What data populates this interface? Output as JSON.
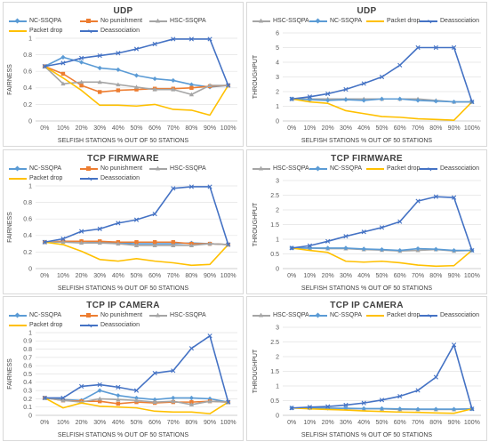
{
  "x_axis_label": "SELFISH STATIONS % OUT OF 50 STATIONS",
  "colors": {
    "nc_ssqpa": "#5b9bd5",
    "no_punishment": "#ed7d31",
    "hsc_ssqpa": "#a5a5a5",
    "packet_drop": "#ffc000",
    "deassociation": "#4472c4"
  },
  "chart_data": [
    {
      "id": "udp-fairness",
      "type": "line",
      "title": "UDP",
      "ylabel": "FAIRNESS",
      "ylim": [
        0,
        1
      ],
      "yticks": [
        0,
        0.2,
        0.4,
        0.6,
        0.8,
        1
      ],
      "categories": [
        "0%",
        "10%",
        "20%",
        "30%",
        "40%",
        "50%",
        "60%",
        "70%",
        "80%",
        "90%",
        "100%"
      ],
      "legend": [
        "NC-SSQPA",
        "No punishment",
        "HSC-SSQPA",
        "Packet drop",
        "Deassociation"
      ],
      "series": [
        {
          "name": "NC-SSQPA",
          "values": [
            0.66,
            0.77,
            0.71,
            0.64,
            0.62,
            0.55,
            0.51,
            0.49,
            0.44,
            0.41,
            0.43
          ]
        },
        {
          "name": "No punishment",
          "values": [
            0.66,
            0.57,
            0.43,
            0.35,
            0.37,
            0.38,
            0.39,
            0.39,
            0.4,
            0.42,
            0.43
          ]
        },
        {
          "name": "HSC-SSQPA",
          "values": [
            0.66,
            0.45,
            0.47,
            0.47,
            0.44,
            0.41,
            0.38,
            0.38,
            0.32,
            0.43,
            0.43
          ]
        },
        {
          "name": "Packet drop",
          "values": [
            0.66,
            0.52,
            0.37,
            0.19,
            0.19,
            0.18,
            0.2,
            0.14,
            0.13,
            0.07,
            0.43
          ]
        },
        {
          "name": "Deassociation",
          "values": [
            0.66,
            0.7,
            0.76,
            0.79,
            0.82,
            0.87,
            0.93,
            0.99,
            0.99,
            0.99,
            0.43
          ]
        }
      ]
    },
    {
      "id": "udp-throughput",
      "type": "line",
      "title": "UDP",
      "ylabel": "THROUGHPUT",
      "ylim": [
        0,
        6
      ],
      "yticks": [
        0,
        1,
        2,
        3,
        4,
        5,
        6
      ],
      "categories": [
        "0%",
        "10%",
        "20%",
        "30%",
        "40%",
        "50%",
        "60%",
        "70%",
        "80%",
        "90%",
        "100%"
      ],
      "legend": [
        "HSC-SSQPA",
        "NC-SSQPA",
        "Packet drop",
        "Deassociation"
      ],
      "series": [
        {
          "name": "HSC-SSQPA",
          "values": [
            1.5,
            1.5,
            1.5,
            1.5,
            1.5,
            1.5,
            1.5,
            1.5,
            1.4,
            1.3,
            1.3
          ]
        },
        {
          "name": "NC-SSQPA",
          "values": [
            1.5,
            1.45,
            1.4,
            1.45,
            1.4,
            1.5,
            1.5,
            1.4,
            1.35,
            1.3,
            1.3
          ]
        },
        {
          "name": "Packet drop",
          "values": [
            1.5,
            1.3,
            1.2,
            0.7,
            0.5,
            0.3,
            0.25,
            0.15,
            0.1,
            0.05,
            1.3
          ]
        },
        {
          "name": "Deassociation",
          "values": [
            1.5,
            1.65,
            1.85,
            2.15,
            2.55,
            3.0,
            3.8,
            5.0,
            5.0,
            5.0,
            1.3
          ]
        }
      ]
    },
    {
      "id": "tcp-firmware-fairness",
      "type": "line",
      "title": "TCP FIRMWARE",
      "ylabel": "FAIRNESS",
      "ylim": [
        0,
        1
      ],
      "yticks": [
        0,
        0.2,
        0.4,
        0.6,
        0.8,
        1
      ],
      "categories": [
        "0%",
        "10%",
        "20%",
        "30%",
        "40%",
        "50%",
        "60%",
        "70%",
        "80%",
        "90%",
        "100%"
      ],
      "legend": [
        "NC-SSQPA",
        "No punishment",
        "HSC-SSQPA",
        "Packet drop",
        "Deassociation"
      ],
      "series": [
        {
          "name": "NC-SSQPA",
          "values": [
            0.32,
            0.33,
            0.33,
            0.32,
            0.31,
            0.3,
            0.3,
            0.3,
            0.31,
            0.3,
            0.29
          ]
        },
        {
          "name": "No punishment",
          "values": [
            0.32,
            0.33,
            0.33,
            0.33,
            0.32,
            0.32,
            0.32,
            0.32,
            0.3,
            0.3,
            0.29
          ]
        },
        {
          "name": "HSC-SSQPA",
          "values": [
            0.32,
            0.32,
            0.31,
            0.31,
            0.3,
            0.28,
            0.28,
            0.28,
            0.28,
            0.3,
            0.29
          ]
        },
        {
          "name": "Packet drop",
          "values": [
            0.32,
            0.29,
            0.21,
            0.11,
            0.09,
            0.12,
            0.09,
            0.07,
            0.04,
            0.05,
            0.29
          ]
        },
        {
          "name": "Deassociation",
          "values": [
            0.32,
            0.36,
            0.45,
            0.48,
            0.55,
            0.59,
            0.66,
            0.97,
            0.99,
            0.99,
            0.29
          ]
        }
      ]
    },
    {
      "id": "tcp-firmware-throughput",
      "type": "line",
      "title": "TCP FIRMWARE",
      "ylabel": "THROUGHPUT",
      "ylim": [
        0,
        3
      ],
      "yticks": [
        0,
        0.5,
        1,
        1.5,
        2,
        2.5,
        3
      ],
      "categories": [
        "0%",
        "10%",
        "20%",
        "30%",
        "40%",
        "50%",
        "60%",
        "70%",
        "80%",
        "90%",
        "100%"
      ],
      "legend": [
        "HSC-SSQPA",
        "NC-SSQPA",
        "Packet drop",
        "Deassociation"
      ],
      "series": [
        {
          "name": "HSC-SSQPA",
          "values": [
            0.7,
            0.7,
            0.68,
            0.68,
            0.65,
            0.63,
            0.6,
            0.62,
            0.65,
            0.6,
            0.62
          ]
        },
        {
          "name": "NC-SSQPA",
          "values": [
            0.7,
            0.7,
            0.7,
            0.7,
            0.67,
            0.65,
            0.62,
            0.68,
            0.66,
            0.62,
            0.62
          ]
        },
        {
          "name": "Packet drop",
          "values": [
            0.7,
            0.62,
            0.55,
            0.25,
            0.22,
            0.25,
            0.2,
            0.12,
            0.08,
            0.1,
            0.62
          ]
        },
        {
          "name": "Deassociation",
          "values": [
            0.7,
            0.78,
            0.93,
            1.1,
            1.25,
            1.4,
            1.6,
            2.3,
            2.45,
            2.42,
            0.62
          ]
        }
      ]
    },
    {
      "id": "tcp-ip-camera-fairness",
      "type": "line",
      "title": "TCP IP CAMERA",
      "ylabel": "FAIRNESS",
      "ylim": [
        0,
        1
      ],
      "yticks": [
        0,
        0.1,
        0.2,
        0.3,
        0.4,
        0.5,
        0.6,
        0.7,
        0.8,
        0.9,
        1
      ],
      "categories": [
        "0%",
        "10%",
        "20%",
        "30%",
        "40%",
        "50%",
        "60%",
        "70%",
        "80%",
        "90%",
        "100%"
      ],
      "legend": [
        "NC-SSQPA",
        "No punishment",
        "HSC-SSQPA",
        "Packet drop",
        "Deassociation"
      ],
      "series": [
        {
          "name": "NC-SSQPA",
          "values": [
            0.21,
            0.19,
            0.18,
            0.3,
            0.24,
            0.21,
            0.19,
            0.21,
            0.21,
            0.2,
            0.16
          ]
        },
        {
          "name": "No punishment",
          "values": [
            0.21,
            0.18,
            0.17,
            0.17,
            0.14,
            0.16,
            0.15,
            0.16,
            0.16,
            0.17,
            0.16
          ]
        },
        {
          "name": "HSC-SSQPA",
          "values": [
            0.21,
            0.18,
            0.16,
            0.2,
            0.19,
            0.18,
            0.16,
            0.17,
            0.13,
            0.17,
            0.16
          ]
        },
        {
          "name": "Packet drop",
          "values": [
            0.21,
            0.09,
            0.15,
            0.11,
            0.1,
            0.09,
            0.05,
            0.04,
            0.04,
            0.02,
            0.16
          ]
        },
        {
          "name": "Deassociation",
          "values": [
            0.21,
            0.21,
            0.35,
            0.37,
            0.34,
            0.3,
            0.51,
            0.54,
            0.81,
            0.96,
            0.16
          ]
        }
      ]
    },
    {
      "id": "tcp-ip-camera-throughput",
      "type": "line",
      "title": "TCP IP CAMERA",
      "ylabel": "THROUGHPUT",
      "ylim": [
        0,
        3
      ],
      "yticks": [
        0,
        0.5,
        1,
        1.5,
        2,
        2.5,
        3
      ],
      "categories": [
        "0%",
        "10%",
        "20%",
        "30%",
        "40%",
        "50%",
        "60%",
        "70%",
        "80%",
        "90%",
        "100%"
      ],
      "legend": [
        "HSC-SSQPA",
        "NC-SSQPA",
        "Packet drop",
        "Deassociation"
      ],
      "series": [
        {
          "name": "HSC-SSQPA",
          "values": [
            0.25,
            0.25,
            0.25,
            0.23,
            0.22,
            0.22,
            0.2,
            0.2,
            0.2,
            0.2,
            0.22
          ]
        },
        {
          "name": "NC-SSQPA",
          "values": [
            0.25,
            0.25,
            0.24,
            0.24,
            0.23,
            0.23,
            0.22,
            0.21,
            0.21,
            0.21,
            0.22
          ]
        },
        {
          "name": "Packet drop",
          "values": [
            0.25,
            0.22,
            0.2,
            0.18,
            0.15,
            0.13,
            0.11,
            0.1,
            0.08,
            0.07,
            0.22
          ]
        },
        {
          "name": "Deassociation",
          "values": [
            0.25,
            0.28,
            0.3,
            0.35,
            0.42,
            0.52,
            0.65,
            0.85,
            1.3,
            2.4,
            0.22
          ]
        }
      ]
    }
  ]
}
